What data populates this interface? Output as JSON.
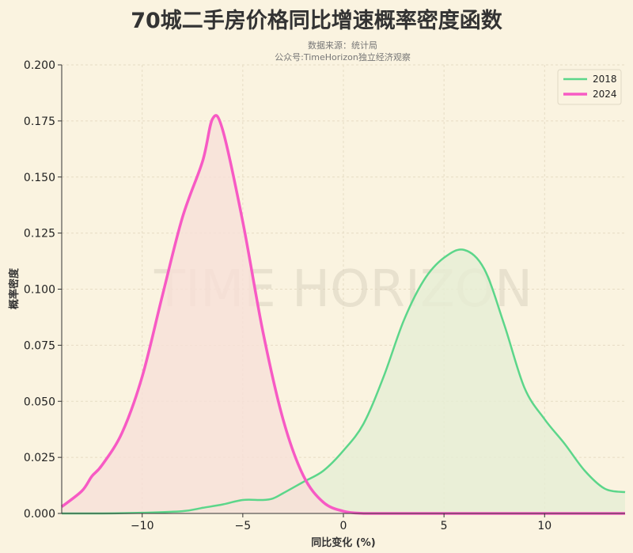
{
  "chart_data": {
    "type": "area",
    "title": "70城二手房价格同比增速概率密度函数",
    "subtitle_lines": [
      "数据来源：统计局",
      "公众号:TimeHorizon独立经济观察"
    ],
    "xlabel": "同比变化 (%)",
    "ylabel": "概率密度",
    "xlim": [
      -14,
      14
    ],
    "ylim": [
      0,
      0.2
    ],
    "xticks": [
      -10,
      -5,
      0,
      5,
      10
    ],
    "yticks": [
      0,
      0.025,
      0.05,
      0.075,
      0.1,
      0.125,
      0.15,
      0.175,
      0.2
    ],
    "ytick_labels": [
      "0.000",
      "0.025",
      "0.050",
      "0.075",
      "0.100",
      "0.125",
      "0.150",
      "0.175",
      "0.200"
    ],
    "grid": true,
    "legend_position": "top-right",
    "watermark": "TIME HORIZON",
    "series": [
      {
        "name": "2018",
        "color": "#5cd68a",
        "fill": "#e6edd5",
        "x": [
          -14,
          -12,
          -10,
          -8,
          -7,
          -6,
          -5,
          -4,
          -3.5,
          -3,
          -2,
          -1,
          0,
          1,
          2,
          3,
          4,
          5,
          6,
          7,
          8,
          9,
          10,
          11,
          12,
          13,
          14
        ],
        "y": [
          0,
          0,
          0.0003,
          0.001,
          0.0025,
          0.004,
          0.006,
          0.006,
          0.0067,
          0.009,
          0.014,
          0.019,
          0.028,
          0.04,
          0.061,
          0.086,
          0.104,
          0.114,
          0.1175,
          0.109,
          0.084,
          0.056,
          0.042,
          0.031,
          0.019,
          0.011,
          0.0095
        ]
      },
      {
        "name": "2024",
        "color": "#f75ac4",
        "fill": "#f8e0d8",
        "x": [
          -14,
          -13,
          -12.5,
          -12,
          -11,
          -10,
          -9,
          -8,
          -7,
          -6.5,
          -6,
          -5,
          -4,
          -3,
          -2,
          -1,
          0,
          1,
          2,
          4,
          6,
          8,
          10,
          12,
          14
        ],
        "y": [
          0.003,
          0.01,
          0.0166,
          0.0215,
          0.036,
          0.061,
          0.097,
          0.132,
          0.157,
          0.176,
          0.171,
          0.13,
          0.081,
          0.042,
          0.017,
          0.005,
          0.001,
          0,
          0,
          0,
          0,
          0,
          0,
          0,
          0
        ]
      }
    ]
  }
}
